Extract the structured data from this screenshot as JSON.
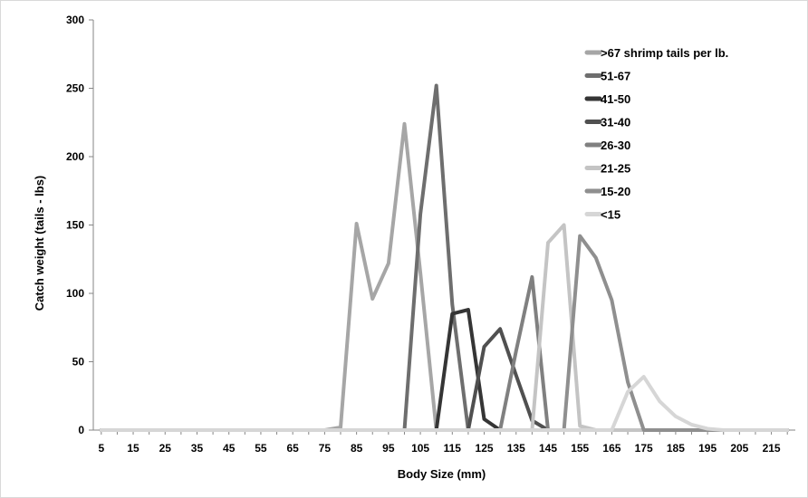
{
  "chart_data": {
    "type": "line",
    "title": "",
    "xlabel": "Body Size (mm)",
    "ylabel": "Catch weight (tails - lbs)",
    "xlim": [
      2.5,
      222.5
    ],
    "ylim": [
      0,
      300
    ],
    "y_ticks": [
      0,
      50,
      100,
      150,
      200,
      250,
      300
    ],
    "x_ticks": [
      5,
      15,
      25,
      35,
      45,
      55,
      65,
      75,
      85,
      95,
      105,
      115,
      125,
      135,
      145,
      155,
      165,
      175,
      185,
      195,
      205,
      215
    ],
    "grid": false,
    "legend_position": "top-right",
    "x": [
      5,
      10,
      15,
      20,
      25,
      30,
      35,
      40,
      45,
      50,
      55,
      60,
      65,
      70,
      75,
      80,
      85,
      90,
      95,
      100,
      105,
      110,
      115,
      120,
      125,
      130,
      135,
      140,
      145,
      150,
      155,
      160,
      165,
      170,
      175,
      180,
      185,
      190,
      195,
      200,
      205,
      210,
      215,
      220
    ],
    "series": [
      {
        "name": ">67 shrimp tails per lb.",
        "color": "#a6a6a6",
        "values": [
          0,
          0,
          0,
          0,
          0,
          0,
          0,
          0,
          0,
          0,
          0,
          0,
          0,
          0,
          0,
          2,
          151,
          96,
          122,
          224,
          115,
          0,
          0,
          0,
          0,
          0,
          0,
          0,
          0,
          0,
          0,
          0,
          0,
          0,
          0,
          0,
          0,
          0,
          0,
          0,
          0,
          0,
          0,
          0
        ]
      },
      {
        "name": "51-67",
        "color": "#6e6e6e",
        "values": [
          0,
          0,
          0,
          0,
          0,
          0,
          0,
          0,
          0,
          0,
          0,
          0,
          0,
          0,
          0,
          0,
          0,
          0,
          0,
          0,
          158,
          252,
          92,
          0,
          0,
          0,
          0,
          0,
          0,
          0,
          0,
          0,
          0,
          0,
          0,
          0,
          0,
          0,
          0,
          0,
          0,
          0,
          0,
          0
        ]
      },
      {
        "name": "41-50",
        "color": "#353535",
        "values": [
          0,
          0,
          0,
          0,
          0,
          0,
          0,
          0,
          0,
          0,
          0,
          0,
          0,
          0,
          0,
          0,
          0,
          0,
          0,
          0,
          0,
          0,
          85,
          88,
          8,
          0,
          0,
          0,
          0,
          0,
          0,
          0,
          0,
          0,
          0,
          0,
          0,
          0,
          0,
          0,
          0,
          0,
          0,
          0
        ]
      },
      {
        "name": "31-40",
        "color": "#505050",
        "values": [
          0,
          0,
          0,
          0,
          0,
          0,
          0,
          0,
          0,
          0,
          0,
          0,
          0,
          0,
          0,
          0,
          0,
          0,
          0,
          0,
          0,
          0,
          0,
          0,
          61,
          74,
          40,
          7,
          0,
          0,
          0,
          0,
          0,
          0,
          0,
          0,
          0,
          0,
          0,
          0,
          0,
          0,
          0,
          0
        ]
      },
      {
        "name": "26-30",
        "color": "#808080",
        "values": [
          0,
          0,
          0,
          0,
          0,
          0,
          0,
          0,
          0,
          0,
          0,
          0,
          0,
          0,
          0,
          0,
          0,
          0,
          0,
          0,
          0,
          0,
          0,
          0,
          0,
          0,
          58,
          112,
          0,
          0,
          0,
          0,
          0,
          0,
          0,
          0,
          0,
          0,
          0,
          0,
          0,
          0,
          0,
          0
        ]
      },
      {
        "name": "21-25",
        "color": "#c4c4c4",
        "values": [
          0,
          0,
          0,
          0,
          0,
          0,
          0,
          0,
          0,
          0,
          0,
          0,
          0,
          0,
          0,
          0,
          0,
          0,
          0,
          0,
          0,
          0,
          0,
          0,
          0,
          0,
          0,
          0,
          137,
          150,
          3,
          0,
          0,
          0,
          0,
          0,
          0,
          0,
          0,
          0,
          0,
          0,
          0,
          0
        ]
      },
      {
        "name": "15-20",
        "color": "#8f8f8f",
        "values": [
          0,
          0,
          0,
          0,
          0,
          0,
          0,
          0,
          0,
          0,
          0,
          0,
          0,
          0,
          0,
          0,
          0,
          0,
          0,
          0,
          0,
          0,
          0,
          0,
          0,
          0,
          0,
          0,
          0,
          0,
          142,
          126,
          95,
          35,
          0,
          0,
          0,
          0,
          0,
          0,
          0,
          0,
          0,
          0
        ]
      },
      {
        "name": "<15",
        "color": "#d6d6d6",
        "values": [
          0,
          0,
          0,
          0,
          0,
          0,
          0,
          0,
          0,
          0,
          0,
          0,
          0,
          0,
          0,
          0,
          0,
          0,
          0,
          0,
          0,
          0,
          0,
          0,
          0,
          0,
          0,
          0,
          0,
          0,
          0,
          0,
          0,
          28,
          39,
          21,
          10,
          4,
          1,
          0,
          0,
          0,
          0,
          0
        ]
      }
    ]
  }
}
